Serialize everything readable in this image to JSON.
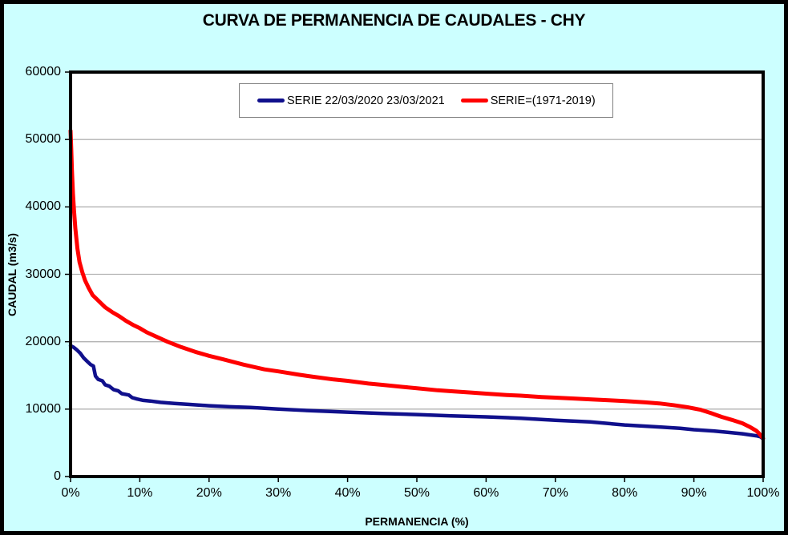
{
  "window": {
    "background_color": "#CCFFFF",
    "frame_border_color": "#000000"
  },
  "chart_data": {
    "type": "line",
    "title": "CURVA DE PERMANENCIA DE CAUDALES - CHY",
    "xlabel": "PERMANENCIA (%)",
    "ylabel": "CAUDAL (m3/s)",
    "xlim": [
      0,
      100
    ],
    "ylim": [
      0,
      60000
    ],
    "x_tick_values": [
      0,
      10,
      20,
      30,
      40,
      50,
      60,
      70,
      80,
      90,
      100
    ],
    "x_tick_labels": [
      "0%",
      "10%",
      "20%",
      "30%",
      "40%",
      "50%",
      "60%",
      "70%",
      "80%",
      "90%",
      "100%"
    ],
    "y_tick_values": [
      0,
      10000,
      20000,
      30000,
      40000,
      50000,
      60000
    ],
    "y_tick_labels": [
      "0",
      "10000",
      "20000",
      "30000",
      "40000",
      "50000",
      "60000"
    ],
    "grid": "horizontal-only",
    "gridline_color": "#B3B3B3",
    "plot_background": "#FFFFFF",
    "plot_border_color": "#000000",
    "legend_position": "top-center-inside",
    "series": [
      {
        "name": "SERIE 22/03/2020 23/03/2021",
        "color": "#10108C",
        "width": 4.5,
        "x": [
          0,
          0.4,
          0.9,
          1.4,
          1.9,
          2.4,
          2.9,
          3.3,
          3.6,
          4.0,
          4.6,
          5.0,
          5.6,
          6.2,
          6.9,
          7.4,
          8.4,
          8.9,
          9.6,
          10.5,
          11.5,
          13,
          15,
          17,
          20,
          23,
          26,
          30,
          35,
          40,
          45,
          50,
          55,
          60,
          65,
          70,
          75,
          80,
          85,
          88,
          90,
          93,
          95,
          97,
          99,
          99.6,
          100
        ],
        "y": [
          19400,
          19200,
          18800,
          18300,
          17600,
          17100,
          16600,
          16400,
          14900,
          14400,
          14200,
          13600,
          13400,
          12900,
          12700,
          12300,
          12100,
          11700,
          11500,
          11300,
          11200,
          11000,
          10850,
          10700,
          10500,
          10350,
          10250,
          10000,
          9750,
          9550,
          9350,
          9200,
          9000,
          8850,
          8650,
          8350,
          8100,
          7650,
          7350,
          7150,
          6950,
          6750,
          6550,
          6350,
          6050,
          5900,
          5600
        ]
      },
      {
        "name": "SERIE=(1971-2019)",
        "color": "#FF0000",
        "width": 5,
        "x": [
          0,
          0.1,
          0.2,
          0.35,
          0.5,
          0.7,
          1.0,
          1.3,
          1.7,
          2.1,
          2.6,
          3.2,
          4.0,
          5.0,
          6.0,
          7.0,
          8.0,
          9.0,
          10,
          11,
          12.5,
          14,
          16,
          18,
          20,
          22,
          25,
          28,
          30,
          33,
          35,
          38,
          40,
          43,
          45,
          48,
          50,
          53,
          55,
          58,
          60,
          63,
          65,
          68,
          70,
          73,
          75,
          78,
          80,
          83,
          85,
          87,
          89,
          90,
          91,
          92.5,
          94,
          95.5,
          97,
          98,
          99,
          99.4,
          99.8,
          100
        ],
        "y": [
          51300,
          48500,
          45500,
          42000,
          39500,
          36800,
          33800,
          31800,
          30300,
          29100,
          28000,
          26900,
          26100,
          25100,
          24400,
          23800,
          23100,
          22500,
          22000,
          21400,
          20700,
          20000,
          19200,
          18500,
          17900,
          17400,
          16600,
          15900,
          15600,
          15100,
          14800,
          14400,
          14200,
          13800,
          13600,
          13300,
          13100,
          12800,
          12650,
          12450,
          12300,
          12100,
          12000,
          11800,
          11700,
          11550,
          11450,
          11300,
          11200,
          11000,
          10850,
          10600,
          10300,
          10100,
          9900,
          9400,
          8850,
          8400,
          7900,
          7400,
          6800,
          6400,
          5900,
          5650
        ]
      }
    ]
  }
}
